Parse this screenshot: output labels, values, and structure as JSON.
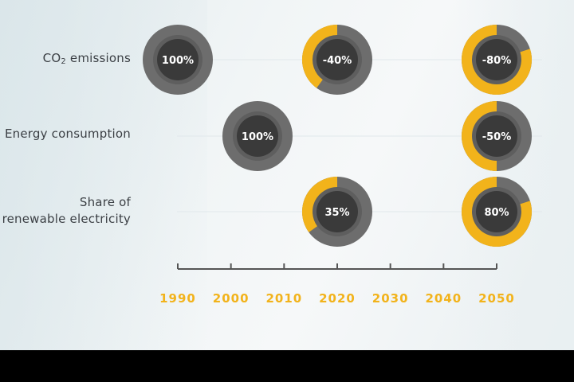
{
  "chart_data": {
    "type": "timeline-donut",
    "rows": [
      {
        "label_prefix": "CO",
        "label_sub": "2",
        "label_suffix": " emissions",
        "points": [
          {
            "year": 1990,
            "text": "100%",
            "highlight": 0
          },
          {
            "year": 2020,
            "text": "-40%",
            "highlight": 0.4
          },
          {
            "year": 2050,
            "text": "-80%",
            "highlight": 0.8
          }
        ]
      },
      {
        "label_lines": [
          "Energy consumption"
        ],
        "points": [
          {
            "year": 2005,
            "text": "100%",
            "highlight": 0
          },
          {
            "year": 2050,
            "text": "-50%",
            "highlight": 0.5
          }
        ]
      },
      {
        "label_lines": [
          "Share of",
          "renewable electricity"
        ],
        "points": [
          {
            "year": 2020,
            "text": "35%",
            "highlight": 0.35
          },
          {
            "year": 2050,
            "text": "80%",
            "highlight": 0.8
          }
        ]
      }
    ],
    "x_ticks": [
      1990,
      2000,
      2010,
      2020,
      2030,
      2040,
      2050
    ],
    "xlim": [
      1990,
      2050
    ],
    "colors": {
      "highlight": "#f2b31b",
      "ring": "#6d6d6d",
      "ring_inner": "#5e5e5e",
      "center": "#3a3a3a",
      "tick_label": "#f2b31b",
      "axis": "#555555",
      "guide": "#e1e8eb",
      "value_text": "#ffffff"
    }
  }
}
